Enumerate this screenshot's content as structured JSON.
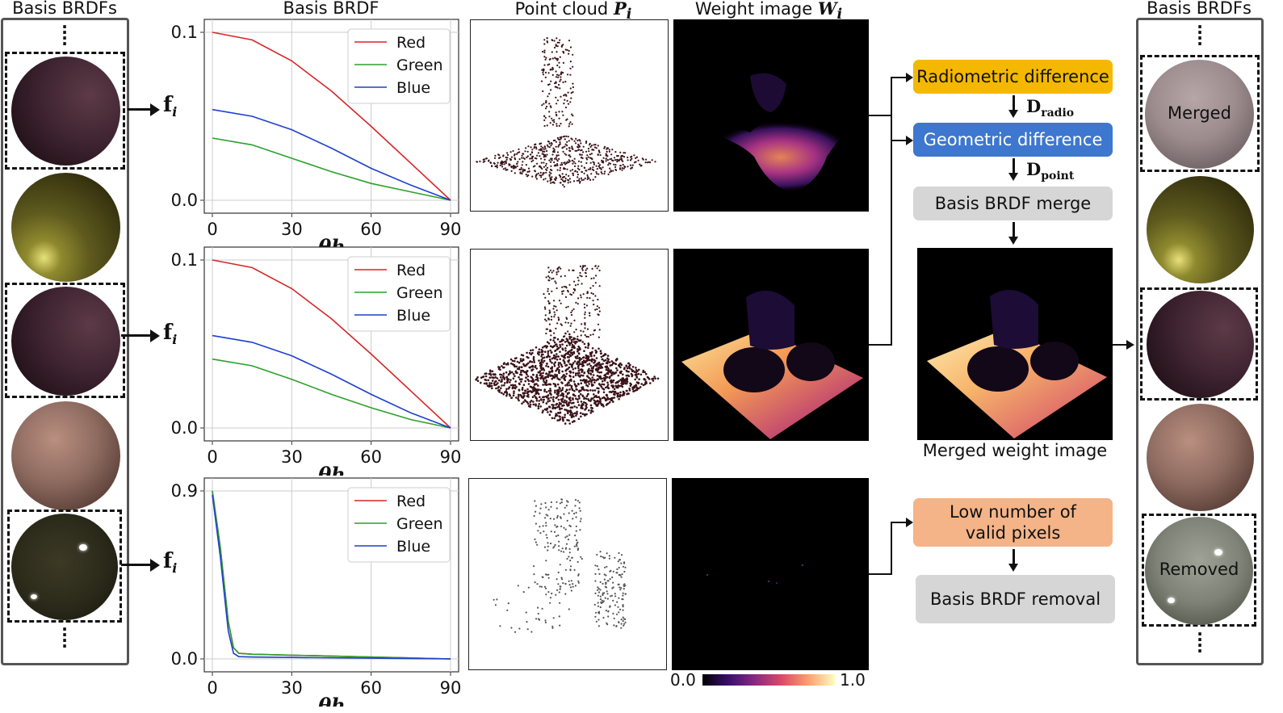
{
  "left_column": {
    "title": "Basis BRDFs",
    "fi_symbol": "f",
    "fi_sub": "i"
  },
  "plot_column": {
    "title": "Basis BRDF",
    "plots": [
      {
        "chart_data": {
          "type": "line",
          "xlabel": "θh",
          "ylabel": "",
          "xlim": [
            0,
            90
          ],
          "ylim": [
            0,
            0.1
          ],
          "x_ticks": [
            "0",
            "30",
            "60",
            "90"
          ],
          "y_ticks": [
            "0.0",
            "0.1"
          ],
          "legend": "top-right",
          "series": [
            {
              "name": "Red",
              "color": "#d62728",
              "x": [
                0,
                15,
                30,
                45,
                60,
                75,
                90
              ],
              "values": [
                0.1,
                0.0955,
                0.083,
                0.065,
                0.044,
                0.022,
                0.0
              ]
            },
            {
              "name": "Green",
              "color": "#2ca02c",
              "x": [
                0,
                15,
                30,
                45,
                60,
                75,
                90
              ],
              "values": [
                0.037,
                0.033,
                0.025,
                0.017,
                0.01,
                0.005,
                0.0
              ]
            },
            {
              "name": "Blue",
              "color": "#1f3fcf",
              "x": [
                0,
                15,
                30,
                45,
                60,
                75,
                90
              ],
              "values": [
                0.054,
                0.05,
                0.042,
                0.031,
                0.019,
                0.009,
                0.0
              ]
            }
          ]
        }
      },
      {
        "chart_data": {
          "type": "line",
          "xlabel": "θh",
          "ylabel": "",
          "xlim": [
            0,
            90
          ],
          "ylim": [
            0,
            0.1
          ],
          "x_ticks": [
            "0",
            "30",
            "60",
            "90"
          ],
          "y_ticks": [
            "0.0",
            "0.1"
          ],
          "legend": "top-right",
          "series": [
            {
              "name": "Red",
              "color": "#d62728",
              "x": [
                0,
                15,
                30,
                45,
                60,
                75,
                90
              ],
              "values": [
                0.1,
                0.0955,
                0.083,
                0.065,
                0.044,
                0.022,
                0.0
              ]
            },
            {
              "name": "Green",
              "color": "#2ca02c",
              "x": [
                0,
                15,
                30,
                45,
                60,
                75,
                90
              ],
              "values": [
                0.041,
                0.037,
                0.029,
                0.02,
                0.012,
                0.005,
                0.0
              ]
            },
            {
              "name": "Blue",
              "color": "#1f3fcf",
              "x": [
                0,
                15,
                30,
                45,
                60,
                75,
                90
              ],
              "values": [
                0.055,
                0.051,
                0.043,
                0.032,
                0.02,
                0.009,
                0.0
              ]
            }
          ]
        }
      },
      {
        "chart_data": {
          "type": "line",
          "xlabel": "θh",
          "ylabel": "",
          "xlim": [
            0,
            90
          ],
          "ylim": [
            0,
            0.9
          ],
          "x_ticks": [
            "0",
            "30",
            "60",
            "90"
          ],
          "y_ticks": [
            "0.0",
            "0.9"
          ],
          "legend": "top-right",
          "series": [
            {
              "name": "Red",
              "color": "#d62728",
              "x": [
                0,
                3,
                6,
                8,
                10,
                15,
                30,
                60,
                90
              ],
              "values": [
                0.9,
                0.6,
                0.2,
                0.06,
                0.03,
                0.025,
                0.02,
                0.01,
                0.0
              ]
            },
            {
              "name": "Green",
              "color": "#2ca02c",
              "x": [
                0,
                3,
                6,
                8,
                10,
                15,
                30,
                60,
                90
              ],
              "values": [
                0.9,
                0.6,
                0.2,
                0.06,
                0.03,
                0.025,
                0.02,
                0.01,
                0.0
              ]
            },
            {
              "name": "Blue",
              "color": "#1f3fcf",
              "x": [
                0,
                3,
                6,
                8,
                10,
                15,
                30,
                60,
                90
              ],
              "values": [
                0.88,
                0.55,
                0.15,
                0.03,
                0.012,
                0.01,
                0.008,
                0.004,
                0.0
              ]
            }
          ]
        }
      }
    ]
  },
  "point_cloud_column": {
    "title": "Point cloud",
    "symbol": "P",
    "sub": "i"
  },
  "weight_column": {
    "title": "Weight image",
    "symbol": "W",
    "sub": "i",
    "colorbar_min": "0.0",
    "colorbar_max": "1.0"
  },
  "flow": {
    "radiometric": "Radiometric difference",
    "d_radio_main": "D",
    "d_radio_sub": "radio",
    "geometric": "Geometric difference",
    "d_point_main": "D",
    "d_point_sub": "point",
    "merge": "Basis BRDF merge",
    "merged_caption": "Merged weight image",
    "low_pixels": "Low number of valid pixels",
    "removal": "Basis BRDF removal"
  },
  "right_column": {
    "title": "Basis BRDFs",
    "merged_label": "Merged",
    "removed_label": "Removed"
  },
  "colors": {
    "radiometric": "#f5b800",
    "geometric": "#3d77cf",
    "merge": "#d6d6d6",
    "low_pixels": "#f4b487"
  }
}
